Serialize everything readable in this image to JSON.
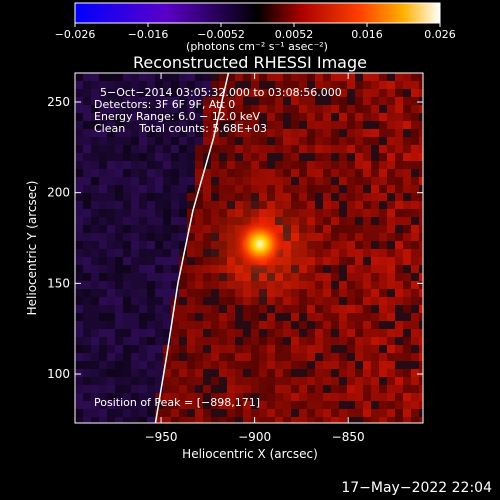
{
  "colorbar": {
    "ticks": [
      "−0.026",
      "−0.016",
      "−0.0052",
      "0.0052",
      "0.016",
      "0.026"
    ],
    "units": "(photons cm⁻² s⁻¹ asec⁻²)",
    "range": [
      -0.026,
      0.026
    ]
  },
  "chart_data": {
    "type": "heatmap",
    "title": "Reconstructed RHESSI Image",
    "xlabel": "Heliocentric X (arcsec)",
    "ylabel": "Heliocentric Y (arcsec)",
    "xlim": [
      -996,
      -810
    ],
    "ylim": [
      73,
      266
    ],
    "xticks": [
      -950,
      -900,
      -850
    ],
    "yticks": [
      100,
      150,
      200,
      250
    ],
    "xtick_labels": [
      "−950",
      "−900",
      "−850"
    ],
    "ytick_labels": [
      "100",
      "150",
      "200",
      "250"
    ],
    "peak": {
      "x": -898,
      "y": 171
    },
    "annotations": [
      "5−Oct−2014 03:05:32.000 to 03:08:56.000",
      "Detectors: 3F 6F 9F, Att 0",
      "Energy Range: 6.0 − 12.0 keV",
      "Clean    Total counts: 5.68E+03",
      "Position of Peak = [−898,171]"
    ],
    "limb_curve": [
      [
        -953,
        73
      ],
      [
        -947,
        110
      ],
      [
        -941,
        150
      ],
      [
        -933,
        190
      ],
      [
        -922,
        230
      ],
      [
        -914,
        266
      ]
    ]
  },
  "footer": "17−May−2022 22:04"
}
